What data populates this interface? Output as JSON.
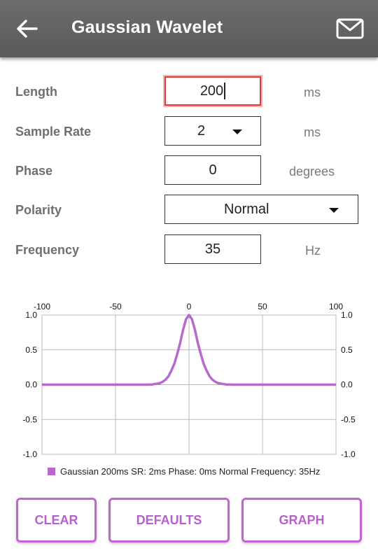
{
  "appbar": {
    "title": "Gaussian Wavelet",
    "back_icon": "arrow-left-icon",
    "mail_icon": "envelope-icon"
  },
  "form": {
    "length": {
      "label": "Length",
      "value": "200",
      "unit": "ms"
    },
    "sample_rate": {
      "label": "Sample Rate",
      "value": "2",
      "unit": "ms"
    },
    "phase": {
      "label": "Phase",
      "value": "0",
      "unit": "degrees"
    },
    "polarity": {
      "label": "Polarity",
      "value": "Normal"
    },
    "frequency": {
      "label": "Frequency",
      "value": "35",
      "unit": "Hz"
    }
  },
  "colors": {
    "accent": "#c264d2",
    "series": "#b968cc",
    "appbar": "#616161",
    "active_border": "#e63838"
  },
  "chart_data": {
    "type": "line",
    "title": "",
    "xlabel": "",
    "ylabel": "",
    "xlim": [
      -100,
      100
    ],
    "ylim": [
      -1.0,
      1.0
    ],
    "x_ticks": [
      "-100",
      "-50",
      "0",
      "50",
      "100"
    ],
    "y_ticks": [
      "1.0",
      "0.5",
      "0.0",
      "-0.5",
      "-1.0"
    ],
    "grid": true,
    "legend_position": "bottom",
    "series": [
      {
        "name": "Gaussian 200ms SR: 2ms Phase: 0ms Normal Frequency: 35Hz",
        "color": "#b968cc",
        "x": [
          -100,
          -30,
          -25,
          -20,
          -18,
          -16,
          -14,
          -12,
          -10,
          -8,
          -6,
          -4,
          -2,
          0,
          2,
          4,
          6,
          8,
          10,
          12,
          14,
          16,
          18,
          20,
          25,
          30,
          100
        ],
        "y": [
          0,
          0,
          0.003,
          0.02,
          0.04,
          0.07,
          0.12,
          0.2,
          0.3,
          0.44,
          0.6,
          0.79,
          0.94,
          1.0,
          0.94,
          0.79,
          0.6,
          0.44,
          0.3,
          0.2,
          0.12,
          0.07,
          0.04,
          0.02,
          0.003,
          0,
          0
        ]
      }
    ]
  },
  "buttons": {
    "clear": "CLEAR",
    "defaults": "DEFAULTS",
    "graph": "GRAPH"
  }
}
